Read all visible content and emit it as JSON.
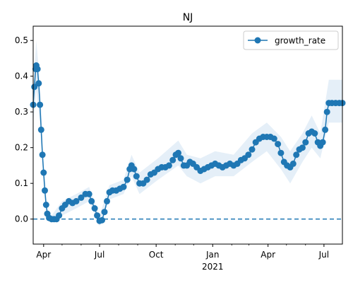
{
  "chart_data": {
    "type": "line",
    "title": "NJ",
    "xlabel": "",
    "ylabel": "",
    "legend": {
      "placement": "top-right",
      "entries": [
        "growth_rate"
      ]
    },
    "grid": false,
    "x_range": [
      "2020-03-15",
      "2021-07-31"
    ],
    "ylim": [
      -0.07,
      0.54
    ],
    "x_tick_labels": [
      {
        "date": "2020-04-01",
        "label": "Apr"
      },
      {
        "date": "2020-07-01",
        "label": "Jul"
      },
      {
        "date": "2020-10-01",
        "label": "Oct"
      },
      {
        "date": "2021-01-01",
        "label": "Jan"
      },
      {
        "date": "2021-04-01",
        "label": "Apr"
      },
      {
        "date": "2021-07-01",
        "label": "Jul"
      }
    ],
    "x_year_label": {
      "date": "2021-01-01",
      "label": "2021"
    },
    "y_tick_labels": [
      {
        "value": 0.0,
        "label": "0.0"
      },
      {
        "value": 0.1,
        "label": "0.1"
      },
      {
        "value": 0.2,
        "label": "0.2"
      },
      {
        "value": 0.3,
        "label": "0.3"
      },
      {
        "value": 0.4,
        "label": "0.4"
      },
      {
        "value": 0.5,
        "label": "0.5"
      }
    ],
    "reference_line": {
      "y": 0.0,
      "style": "dashed"
    },
    "colors": {
      "series": "#1f77b4",
      "band": "#dce9f5"
    },
    "series": [
      {
        "name": "growth_rate",
        "points": [
          {
            "x": "2020-03-15",
            "y": 0.32
          },
          {
            "x": "2020-03-17",
            "y": 0.37
          },
          {
            "x": "2020-03-19",
            "y": 0.42
          },
          {
            "x": "2020-03-20",
            "y": 0.43
          },
          {
            "x": "2020-03-22",
            "y": 0.42
          },
          {
            "x": "2020-03-24",
            "y": 0.38
          },
          {
            "x": "2020-03-26",
            "y": 0.32
          },
          {
            "x": "2020-03-28",
            "y": 0.25
          },
          {
            "x": "2020-03-30",
            "y": 0.18
          },
          {
            "x": "2020-04-01",
            "y": 0.13
          },
          {
            "x": "2020-04-03",
            "y": 0.08
          },
          {
            "x": "2020-04-05",
            "y": 0.04
          },
          {
            "x": "2020-04-07",
            "y": 0.015
          },
          {
            "x": "2020-04-10",
            "y": 0.003
          },
          {
            "x": "2020-04-14",
            "y": 0.0
          },
          {
            "x": "2020-04-18",
            "y": 0.0
          },
          {
            "x": "2020-04-22",
            "y": 0.0
          },
          {
            "x": "2020-04-26",
            "y": 0.01
          },
          {
            "x": "2020-05-01",
            "y": 0.03
          },
          {
            "x": "2020-05-06",
            "y": 0.04
          },
          {
            "x": "2020-05-12",
            "y": 0.05
          },
          {
            "x": "2020-05-18",
            "y": 0.045
          },
          {
            "x": "2020-05-24",
            "y": 0.05
          },
          {
            "x": "2020-06-01",
            "y": 0.06
          },
          {
            "x": "2020-06-08",
            "y": 0.07
          },
          {
            "x": "2020-06-14",
            "y": 0.07
          },
          {
            "x": "2020-06-18",
            "y": 0.05
          },
          {
            "x": "2020-06-23",
            "y": 0.03
          },
          {
            "x": "2020-06-27",
            "y": 0.01
          },
          {
            "x": "2020-07-01",
            "y": -0.005
          },
          {
            "x": "2020-07-05",
            "y": -0.003
          },
          {
            "x": "2020-07-09",
            "y": 0.02
          },
          {
            "x": "2020-07-13",
            "y": 0.05
          },
          {
            "x": "2020-07-17",
            "y": 0.075
          },
          {
            "x": "2020-07-22",
            "y": 0.08
          },
          {
            "x": "2020-07-28",
            "y": 0.08
          },
          {
            "x": "2020-08-03",
            "y": 0.085
          },
          {
            "x": "2020-08-09",
            "y": 0.09
          },
          {
            "x": "2020-08-15",
            "y": 0.11
          },
          {
            "x": "2020-08-19",
            "y": 0.14
          },
          {
            "x": "2020-08-22",
            "y": 0.15
          },
          {
            "x": "2020-08-26",
            "y": 0.14
          },
          {
            "x": "2020-08-30",
            "y": 0.12
          },
          {
            "x": "2020-09-04",
            "y": 0.1
          },
          {
            "x": "2020-09-10",
            "y": 0.1
          },
          {
            "x": "2020-09-16",
            "y": 0.11
          },
          {
            "x": "2020-09-22",
            "y": 0.125
          },
          {
            "x": "2020-09-28",
            "y": 0.13
          },
          {
            "x": "2020-10-04",
            "y": 0.14
          },
          {
            "x": "2020-10-10",
            "y": 0.145
          },
          {
            "x": "2020-10-16",
            "y": 0.145
          },
          {
            "x": "2020-10-22",
            "y": 0.15
          },
          {
            "x": "2020-10-28",
            "y": 0.165
          },
          {
            "x": "2020-11-02",
            "y": 0.18
          },
          {
            "x": "2020-11-06",
            "y": 0.185
          },
          {
            "x": "2020-11-10",
            "y": 0.17
          },
          {
            "x": "2020-11-15",
            "y": 0.15
          },
          {
            "x": "2020-11-20",
            "y": 0.15
          },
          {
            "x": "2020-11-25",
            "y": 0.16
          },
          {
            "x": "2020-11-30",
            "y": 0.155
          },
          {
            "x": "2020-12-06",
            "y": 0.145
          },
          {
            "x": "2020-12-12",
            "y": 0.135
          },
          {
            "x": "2020-12-18",
            "y": 0.14
          },
          {
            "x": "2020-12-24",
            "y": 0.145
          },
          {
            "x": "2020-12-30",
            "y": 0.15
          },
          {
            "x": "2021-01-05",
            "y": 0.155
          },
          {
            "x": "2021-01-11",
            "y": 0.15
          },
          {
            "x": "2021-01-17",
            "y": 0.145
          },
          {
            "x": "2021-01-23",
            "y": 0.15
          },
          {
            "x": "2021-01-29",
            "y": 0.155
          },
          {
            "x": "2021-02-04",
            "y": 0.15
          },
          {
            "x": "2021-02-10",
            "y": 0.155
          },
          {
            "x": "2021-02-16",
            "y": 0.165
          },
          {
            "x": "2021-02-22",
            "y": 0.17
          },
          {
            "x": "2021-02-28",
            "y": 0.18
          },
          {
            "x": "2021-03-06",
            "y": 0.195
          },
          {
            "x": "2021-03-12",
            "y": 0.215
          },
          {
            "x": "2021-03-18",
            "y": 0.225
          },
          {
            "x": "2021-03-24",
            "y": 0.23
          },
          {
            "x": "2021-03-30",
            "y": 0.23
          },
          {
            "x": "2021-04-05",
            "y": 0.23
          },
          {
            "x": "2021-04-11",
            "y": 0.225
          },
          {
            "x": "2021-04-17",
            "y": 0.21
          },
          {
            "x": "2021-04-22",
            "y": 0.185
          },
          {
            "x": "2021-04-27",
            "y": 0.16
          },
          {
            "x": "2021-05-02",
            "y": 0.15
          },
          {
            "x": "2021-05-07",
            "y": 0.145
          },
          {
            "x": "2021-05-12",
            "y": 0.155
          },
          {
            "x": "2021-05-17",
            "y": 0.18
          },
          {
            "x": "2021-05-22",
            "y": 0.195
          },
          {
            "x": "2021-05-27",
            "y": 0.2
          },
          {
            "x": "2021-06-01",
            "y": 0.215
          },
          {
            "x": "2021-06-06",
            "y": 0.24
          },
          {
            "x": "2021-06-11",
            "y": 0.245
          },
          {
            "x": "2021-06-16",
            "y": 0.24
          },
          {
            "x": "2021-06-21",
            "y": 0.215
          },
          {
            "x": "2021-06-25",
            "y": 0.205
          },
          {
            "x": "2021-06-29",
            "y": 0.215
          },
          {
            "x": "2021-07-03",
            "y": 0.25
          },
          {
            "x": "2021-07-06",
            "y": 0.3
          },
          {
            "x": "2021-07-09",
            "y": 0.325
          },
          {
            "x": "2021-07-14",
            "y": 0.325
          },
          {
            "x": "2021-07-20",
            "y": 0.325
          },
          {
            "x": "2021-07-26",
            "y": 0.325
          },
          {
            "x": "2021-07-31",
            "y": 0.325
          }
        ],
        "band": [
          {
            "x": "2020-03-15",
            "lo": 0.27,
            "hi": 0.37
          },
          {
            "x": "2020-03-20",
            "lo": 0.36,
            "hi": 0.5
          },
          {
            "x": "2020-03-26",
            "lo": 0.27,
            "hi": 0.38
          },
          {
            "x": "2020-04-01",
            "lo": 0.1,
            "hi": 0.16
          },
          {
            "x": "2020-04-07",
            "lo": 0.0,
            "hi": 0.03
          },
          {
            "x": "2020-04-14",
            "lo": -0.01,
            "hi": 0.01
          },
          {
            "x": "2020-05-01",
            "lo": 0.01,
            "hi": 0.05
          },
          {
            "x": "2020-05-24",
            "lo": 0.03,
            "hi": 0.07
          },
          {
            "x": "2020-06-14",
            "lo": 0.05,
            "hi": 0.09
          },
          {
            "x": "2020-07-01",
            "lo": -0.02,
            "hi": 0.01
          },
          {
            "x": "2020-07-17",
            "lo": 0.055,
            "hi": 0.095
          },
          {
            "x": "2020-08-09",
            "lo": 0.07,
            "hi": 0.11
          },
          {
            "x": "2020-08-22",
            "lo": 0.12,
            "hi": 0.18
          },
          {
            "x": "2020-09-04",
            "lo": 0.07,
            "hi": 0.13
          },
          {
            "x": "2020-10-04",
            "lo": 0.11,
            "hi": 0.17
          },
          {
            "x": "2020-11-06",
            "lo": 0.15,
            "hi": 0.22
          },
          {
            "x": "2020-11-20",
            "lo": 0.12,
            "hi": 0.18
          },
          {
            "x": "2020-12-12",
            "lo": 0.1,
            "hi": 0.17
          },
          {
            "x": "2021-01-05",
            "lo": 0.12,
            "hi": 0.19
          },
          {
            "x": "2021-02-04",
            "lo": 0.12,
            "hi": 0.18
          },
          {
            "x": "2021-03-06",
            "lo": 0.16,
            "hi": 0.24
          },
          {
            "x": "2021-03-30",
            "lo": 0.19,
            "hi": 0.27
          },
          {
            "x": "2021-04-22",
            "lo": 0.14,
            "hi": 0.23
          },
          {
            "x": "2021-05-07",
            "lo": 0.1,
            "hi": 0.19
          },
          {
            "x": "2021-05-27",
            "lo": 0.16,
            "hi": 0.24
          },
          {
            "x": "2021-06-11",
            "lo": 0.2,
            "hi": 0.29
          },
          {
            "x": "2021-06-25",
            "lo": 0.17,
            "hi": 0.24
          },
          {
            "x": "2021-07-09",
            "lo": 0.27,
            "hi": 0.39
          },
          {
            "x": "2021-07-31",
            "lo": 0.27,
            "hi": 0.39
          }
        ]
      }
    ]
  }
}
